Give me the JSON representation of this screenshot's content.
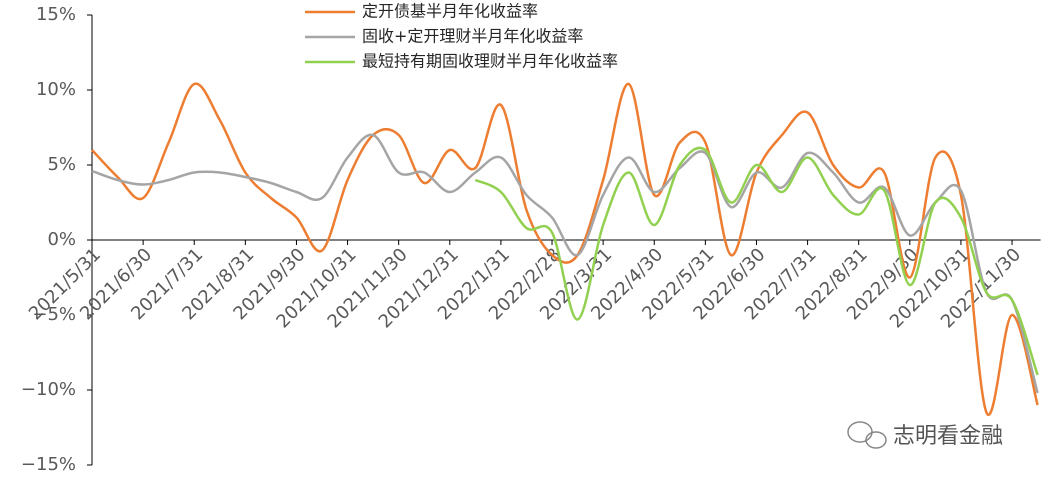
{
  "chart_data": {
    "type": "line",
    "categories": [
      "2021/5/31",
      null,
      "2021/6/30",
      null,
      "2021/7/31",
      null,
      "2021/8/31",
      null,
      "2021/9/30",
      null,
      "2021/10/31",
      null,
      "2021/11/30",
      null,
      "2021/12/31",
      null,
      "2022/1/31",
      null,
      "2022/2/28",
      null,
      "2022/3/31",
      null,
      "2022/4/30",
      null,
      "2022/5/31",
      null,
      "2022/6/30",
      null,
      "2022/7/31",
      null,
      "2022/8/31",
      null,
      "2022/9/30",
      null,
      "2022/10/31",
      null,
      "2022/11/30",
      null
    ],
    "series": [
      {
        "name": "定开债基半月年化收益率",
        "color": "#ed7d31",
        "values": [
          6,
          4.2,
          2.8,
          6.5,
          10.4,
          8,
          4.5,
          2.8,
          1.5,
          -0.7,
          4,
          7,
          7,
          3.8,
          6,
          4.8,
          9,
          2,
          -1,
          -1,
          4,
          10.4,
          3,
          6.5,
          6.5,
          -1,
          4.5,
          7,
          8.5,
          5,
          3.5,
          4.5,
          -2.5,
          5.5,
          3,
          -11.5,
          -5,
          -11
        ]
      },
      {
        "name": "固收+定开理财半月年化收益率",
        "color": "#a5a5a5",
        "values": [
          4.6,
          4,
          3.7,
          4,
          4.5,
          4.5,
          4.2,
          3.8,
          3.2,
          2.8,
          5.5,
          7,
          4.5,
          4.5,
          3.2,
          4.5,
          5.5,
          3,
          1.5,
          -1,
          3,
          5.5,
          3.2,
          4.8,
          5.8,
          2.2,
          4.5,
          3.5,
          5.8,
          4.5,
          2.5,
          3.5,
          0.3,
          2.5,
          3.3,
          -3.5,
          -4,
          -10.2
        ]
      },
      {
        "name": "最短持有期固收理财半月年化收益率",
        "color": "#92d050",
        "values": [
          null,
          null,
          null,
          null,
          null,
          null,
          null,
          null,
          null,
          null,
          null,
          null,
          null,
          null,
          null,
          4,
          3.2,
          0.8,
          0.5,
          -5.3,
          1,
          4.5,
          1,
          5,
          6,
          2.5,
          5,
          3.2,
          5.5,
          3,
          1.7,
          3.3,
          -3,
          2.5,
          1.5,
          -3.5,
          -4,
          -9
        ]
      }
    ],
    "ylim": [
      -15,
      15
    ],
    "yticks": [
      {
        "value": -15,
        "label": "−15%"
      },
      {
        "value": -10,
        "label": "−10%"
      },
      {
        "value": -5,
        "label": "−5%"
      },
      {
        "value": 0,
        "label": "0%"
      },
      {
        "value": 5,
        "label": "5%"
      },
      {
        "value": 10,
        "label": "10%"
      },
      {
        "value": 15,
        "label": "15%"
      }
    ],
    "smooth": true
  },
  "watermark": "志明看金融"
}
